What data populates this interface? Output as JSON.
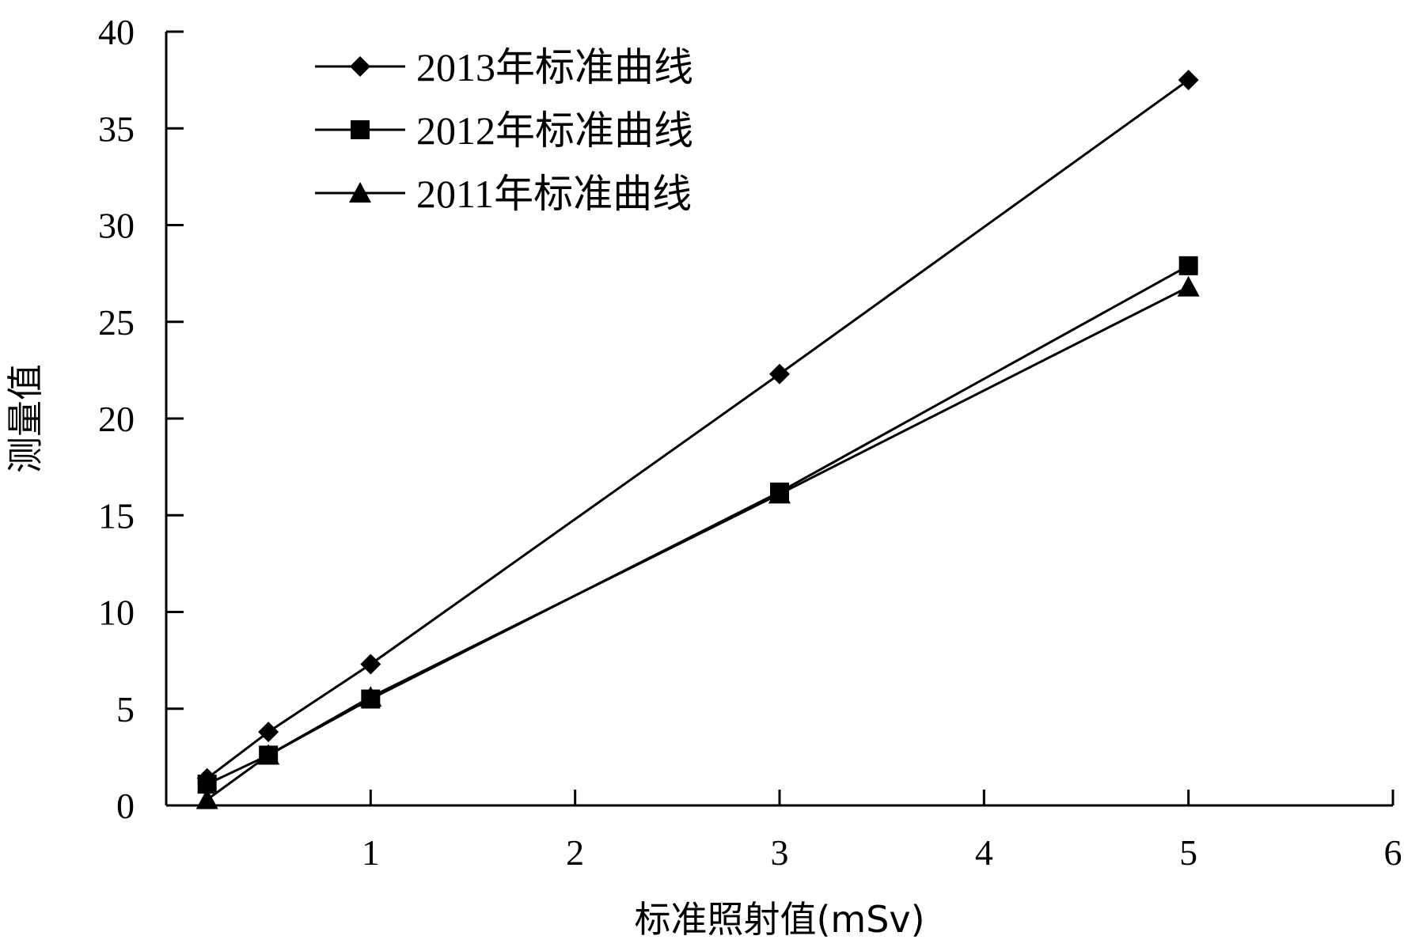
{
  "chart_data": {
    "type": "line",
    "title": "",
    "xlabel": "标准照射值(mSv)",
    "ylabel": "测量值",
    "xlim": [
      0,
      6
    ],
    "ylim": [
      0,
      40
    ],
    "x_ticks": [
      1,
      2,
      3,
      4,
      5,
      6
    ],
    "y_ticks": [
      0,
      5,
      10,
      15,
      20,
      25,
      30,
      35,
      40
    ],
    "grid": false,
    "legend_position": "top-left",
    "series": [
      {
        "name": "2013年标准曲线",
        "marker": "diamond",
        "color": "#000000",
        "points": [
          [
            0.2,
            1.4
          ],
          [
            0.5,
            3.8
          ],
          [
            1,
            7.3
          ],
          [
            3,
            22.3
          ],
          [
            5,
            37.5
          ]
        ]
      },
      {
        "name": "2012年标准曲线",
        "marker": "square",
        "color": "#000000",
        "points": [
          [
            0.2,
            1.1
          ],
          [
            0.5,
            2.6
          ],
          [
            1,
            5.5
          ],
          [
            3,
            16.2
          ],
          [
            5,
            27.9
          ]
        ]
      },
      {
        "name": "2011年标准曲线",
        "marker": "triangle",
        "color": "#000000",
        "points": [
          [
            0.2,
            0.3
          ],
          [
            0.5,
            2.6
          ],
          [
            1,
            5.6
          ],
          [
            3,
            16.1
          ],
          [
            5,
            26.8
          ]
        ]
      }
    ]
  }
}
